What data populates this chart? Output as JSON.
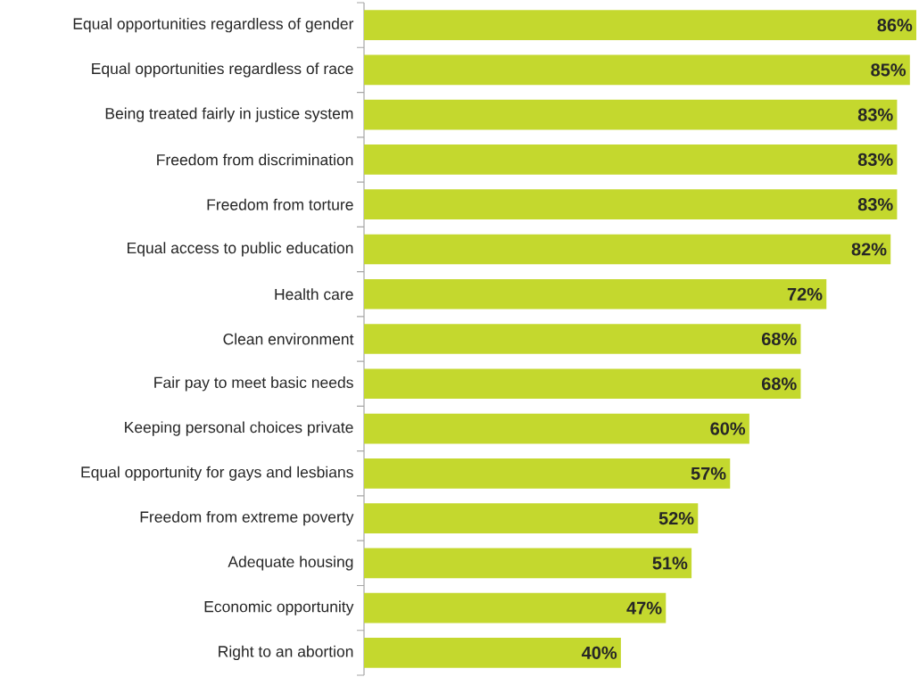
{
  "chart_data": {
    "type": "bar",
    "orientation": "horizontal",
    "color": "#c4d82e",
    "categories": [
      "Equal opportunities regardless of gender",
      "Equal opportunities regardless of race",
      "Being treated fairly in justice system",
      "Freedom from discrimination",
      "Freedom from torture",
      "Equal access to public education",
      "Health care",
      "Clean environment",
      "Fair pay to meet basic needs",
      "Keeping personal choices private",
      "Equal opportunity for gays and lesbians",
      "Freedom from extreme poverty",
      "Adequate housing",
      "Economic opportunity",
      "Right to an abortion"
    ],
    "values": [
      86,
      85,
      83,
      83,
      83,
      82,
      72,
      68,
      68,
      60,
      57,
      52,
      51,
      47,
      40
    ],
    "value_labels": [
      "86%",
      "85%",
      "83%",
      "83%",
      "83%",
      "82%",
      "72%",
      "68%",
      "68%",
      "60%",
      "57%",
      "52%",
      "51%",
      "47%",
      "40%"
    ]
  }
}
